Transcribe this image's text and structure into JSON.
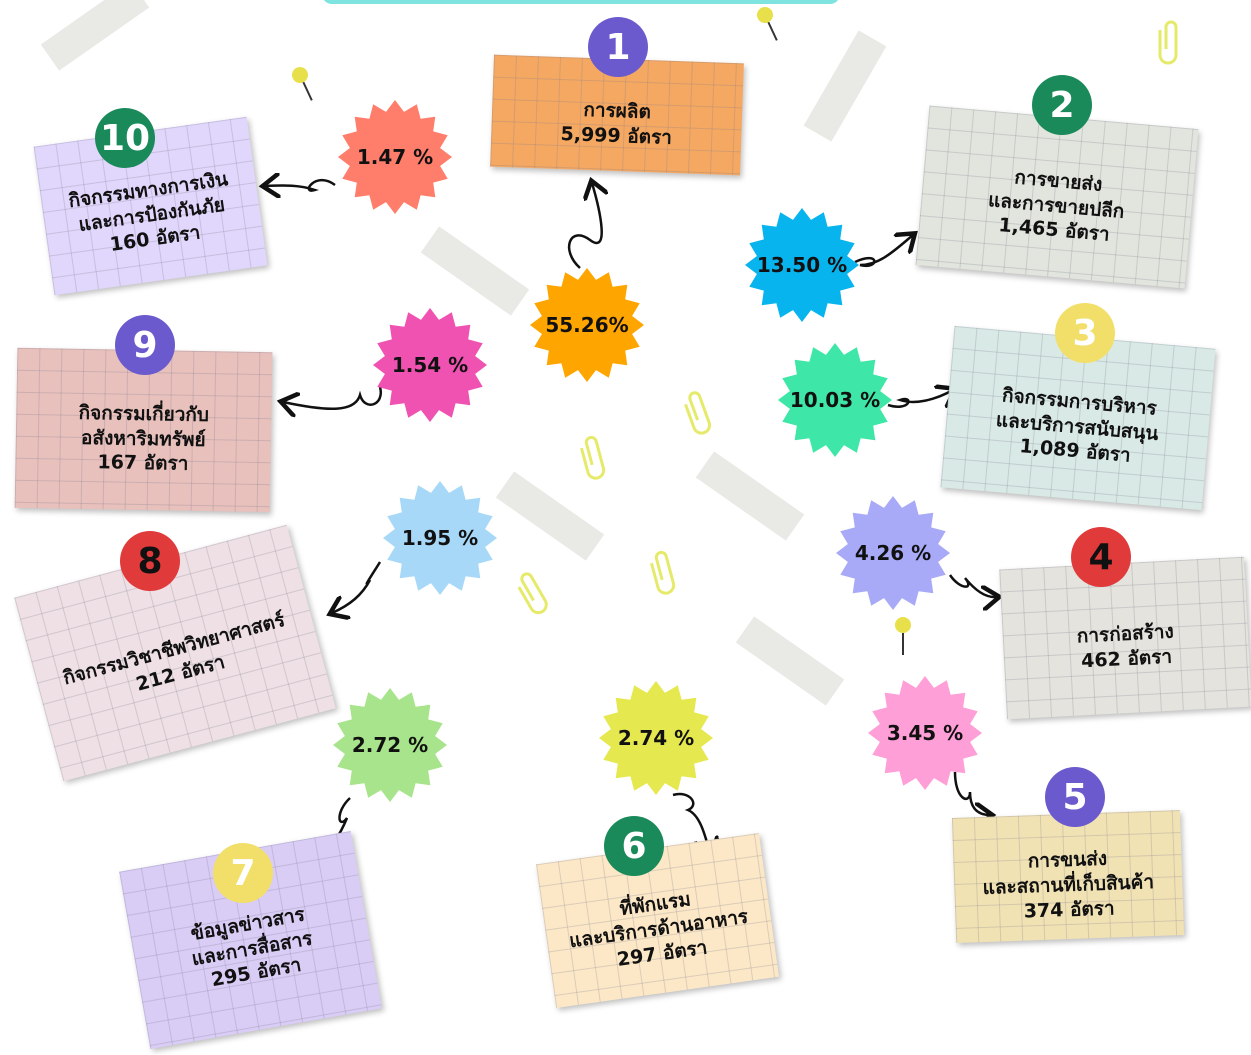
{
  "items": [
    {
      "number": "1",
      "lines": [
        "การผลิต"
      ],
      "count": "5,999 อัตรา",
      "percent": "55.26%"
    },
    {
      "number": "2",
      "lines": [
        "การขายส่ง",
        "และการขายปลีก"
      ],
      "count": "1,465 อัตรา",
      "percent": "13.50 %"
    },
    {
      "number": "3",
      "lines": [
        "กิจกรรมการบริหาร",
        "และบริการสนับสนุน"
      ],
      "count": "1,089 อัตรา",
      "percent": "10.03 %"
    },
    {
      "number": "4",
      "lines": [
        "การก่อสร้าง"
      ],
      "count": "462 อัตรา",
      "percent": "4.26 %"
    },
    {
      "number": "5",
      "lines": [
        "การขนส่ง",
        "และสถานที่เก็บสินค้า"
      ],
      "count": "374 อัตรา",
      "percent": "3.45 %"
    },
    {
      "number": "6",
      "lines": [
        "ที่พักแรม",
        "และบริการด้านอาหาร"
      ],
      "count": "297 อัตรา",
      "percent": "2.74 %"
    },
    {
      "number": "7",
      "lines": [
        "ข้อมูลข่าวสาร",
        "และการสื่อสาร"
      ],
      "count": "295 อัตรา",
      "percent": "2.72 %"
    },
    {
      "number": "8",
      "lines": [
        "กิจกรรมวิชาชีพวิทยาศาสตร์"
      ],
      "count": "212 อัตรา",
      "percent": "1.95 %"
    },
    {
      "number": "9",
      "lines": [
        "กิจกรรมเกี่ยวกับ",
        "อสังหาริมทรัพย์"
      ],
      "count": "167 อัตรา",
      "percent": "1.54 %"
    },
    {
      "number": "10",
      "lines": [
        "กิจกรรมทางการเงิน",
        "และการป้องกันภัย"
      ],
      "count": "160 อัตรา",
      "percent": "1.47 %"
    }
  ]
}
